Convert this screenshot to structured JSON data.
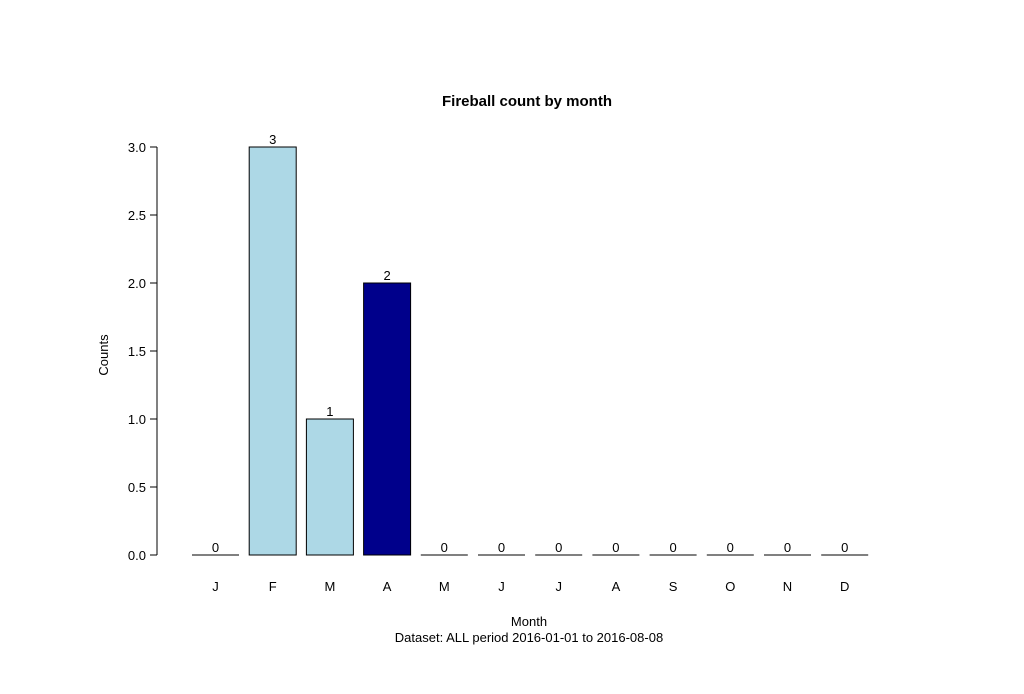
{
  "chart_data": {
    "type": "bar",
    "title": "Fireball count by month",
    "xlabel": "Month",
    "ylabel": "Counts",
    "subtitle": "Dataset: ALL period 2016-01-01 to 2016-08-08",
    "categories": [
      "J",
      "F",
      "M",
      "A",
      "M",
      "J",
      "J",
      "A",
      "S",
      "O",
      "N",
      "D"
    ],
    "values": [
      0,
      3,
      1,
      2,
      0,
      0,
      0,
      0,
      0,
      0,
      0,
      0
    ],
    "data_labels": [
      "0",
      "3",
      "1",
      "2",
      "0",
      "0",
      "0",
      "0",
      "0",
      "0",
      "0",
      "0"
    ],
    "ylim": [
      0,
      3
    ],
    "yticks": [
      "0.0",
      "0.5",
      "1.0",
      "1.5",
      "2.0",
      "2.5",
      "3.0"
    ],
    "highlight_index": 3,
    "grid": false,
    "legend": "none",
    "colors": {
      "bar": "#add8e6",
      "highlight": "#00008b",
      "stroke": "#000000"
    }
  }
}
